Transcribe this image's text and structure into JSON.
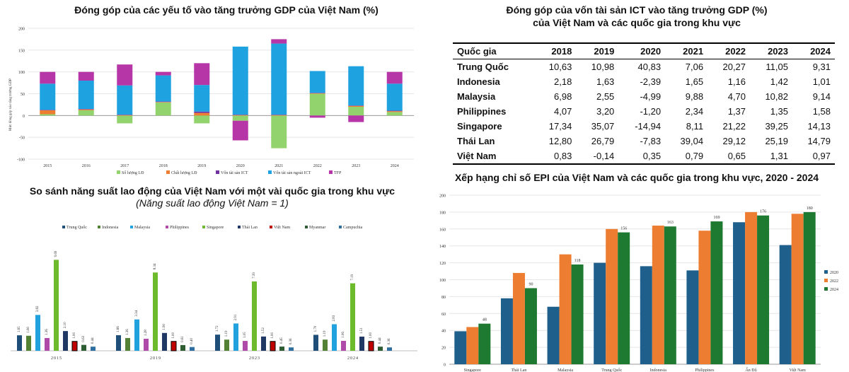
{
  "chart_data": [
    {
      "id": "gdp-contribution",
      "type": "bar",
      "stacked": true,
      "title": "Đóng góp của các yếu tố vào tăng trưởng GDP của Việt Nam (%)",
      "ylabel": "Mức đóng góp vào tăng trưởng GDP",
      "ylim": [
        -100,
        200
      ],
      "yticks": [
        -100,
        -50,
        0,
        50,
        100,
        150,
        200
      ],
      "categories": [
        "2015",
        "2016",
        "2017",
        "2018",
        "2019",
        "2020",
        "2021",
        "2022",
        "2023",
        "2024"
      ],
      "series": [
        {
          "name": "Số lượng LĐ",
          "color": "#92d36e",
          "values": [
            3,
            12,
            -18,
            30,
            -18,
            -12,
            -75,
            50,
            20,
            8
          ]
        },
        {
          "name": "Chất lượng LĐ",
          "color": "#ed7d31",
          "values": [
            9,
            2,
            1,
            1,
            6,
            1,
            1,
            1,
            2,
            2
          ]
        },
        {
          "name": "Vốn tài sản ICT",
          "color": "#7030a0",
          "values": [
            1,
            1,
            1,
            1,
            3,
            1,
            1,
            1,
            1,
            1
          ]
        },
        {
          "name": "Vốn tài sản ngoài ICT",
          "color": "#1fa2e0",
          "values": [
            60,
            65,
            67,
            60,
            61,
            156,
            163,
            50,
            90,
            62
          ]
        },
        {
          "name": "TFP",
          "color": "#b636a8",
          "values": [
            27,
            20,
            48,
            8,
            50,
            -45,
            10,
            -5,
            -15,
            27
          ]
        }
      ],
      "legend_position": "bottom"
    },
    {
      "id": "labor-productivity",
      "type": "bar",
      "title": "So sánh năng suất lao động của Việt Nam với một vài quốc gia trong khu vực",
      "subtitle": "(Năng suất lao động Việt Nam = 1)",
      "categories": [
        "2015",
        "2019",
        "2023",
        "2024"
      ],
      "ylim": [
        0,
        11
      ],
      "series": [
        {
          "name": "Trung Quốc",
          "color": "#1f4e79",
          "values": [
            "1.65",
            "1.66",
            "1.72",
            "1.70"
          ]
        },
        {
          "name": "Indonesia",
          "color": "#548235",
          "values": [
            "1.60",
            "1.36",
            "1.19",
            "1.19"
          ]
        },
        {
          "name": "Malaysia",
          "color": "#21a1dd",
          "values": [
            "3.82",
            "3.34",
            "2.91",
            "2.83"
          ]
        },
        {
          "name": "Philippines",
          "color": "#b04aa8",
          "values": [
            "1.36",
            "1.28",
            "1.05",
            "1.06"
          ]
        },
        {
          "name": "Singapore",
          "color": "#6dba2c",
          "values": [
            "9.69",
            "8.34",
            "7.39",
            "7.19"
          ]
        },
        {
          "name": "Thái Lan",
          "color": "#203864",
          "values": [
            "2.10",
            "1.90",
            "1.52",
            "1.51"
          ]
        },
        {
          "name": "Việt Nam",
          "color": "#c00000",
          "values": [
            "1.00",
            "1.00",
            "1.00",
            "1.00"
          ]
        },
        {
          "name": "Myanmar",
          "color": "#2e5d34",
          "values": [
            "0.63",
            "0.61",
            "0.45",
            "0.44"
          ]
        },
        {
          "name": "Campuchia",
          "color": "#2f6f9f",
          "values": [
            "0.44",
            "0.40",
            "0.36",
            "0.36"
          ]
        }
      ],
      "legend_position": "top"
    },
    {
      "id": "ict-table",
      "type": "table",
      "title_line1": "Đóng góp của vốn tài sản ICT vào tăng trưởng GDP (%)",
      "title_line2": "của Việt Nam và các quốc gia trong khu vực",
      "header": [
        "Quốc gia",
        "2018",
        "2019",
        "2020",
        "2021",
        "2022",
        "2023",
        "2024"
      ],
      "rows": [
        [
          "Trung Quốc",
          "10,63",
          "10,98",
          "40,83",
          "7,06",
          "20,27",
          "11,05",
          "9,31"
        ],
        [
          "Indonesia",
          "2,18",
          "1,63",
          "-2,39",
          "1,65",
          "1,16",
          "1,42",
          "1,01"
        ],
        [
          "Malaysia",
          "6,98",
          "2,55",
          "-4,99",
          "9,88",
          "4,70",
          "10,82",
          "9,14"
        ],
        [
          "Philippines",
          "4,07",
          "3,20",
          "-1,20",
          "2,34",
          "1,37",
          "1,35",
          "1,58"
        ],
        [
          "Singapore",
          "17,34",
          "35,07",
          "-14,94",
          "8,11",
          "21,22",
          "39,25",
          "14,13"
        ],
        [
          "Thái Lan",
          "12,80",
          "26,79",
          "-7,83",
          "39,04",
          "29,12",
          "25,19",
          "14,79"
        ],
        [
          "Việt Nam",
          "0,83",
          "-0,14",
          "0,35",
          "0,79",
          "0,65",
          "1,31",
          "0,97"
        ]
      ]
    },
    {
      "id": "epi-ranking",
      "type": "bar",
      "title": "Xếp hạng chỉ số EPI của Việt Nam và các quốc gia trong khu vực, 2020 - 2024",
      "categories": [
        "Singapore",
        "Thái Lan",
        "Malaysia",
        "Trung Quốc",
        "Indonesia",
        "Philippines",
        "Ấn Độ",
        "Việt Nam"
      ],
      "ylim": [
        0,
        200
      ],
      "yticks": [
        0,
        20,
        40,
        60,
        80,
        100,
        120,
        140,
        160,
        180,
        200
      ],
      "series": [
        {
          "name": "2020",
          "color": "#1f5f8b",
          "values": [
            39,
            78,
            68,
            120,
            116,
            111,
            168,
            141
          ]
        },
        {
          "name": "2022",
          "color": "#ed7d31",
          "values": [
            44,
            108,
            130,
            160,
            164,
            158,
            180,
            178
          ]
        },
        {
          "name": "2024",
          "color": "#1e7a31",
          "values": [
            48,
            90,
            118,
            156,
            163,
            169,
            176,
            180
          ]
        }
      ],
      "data_labels_series": "2024",
      "legend_position": "right"
    }
  ]
}
